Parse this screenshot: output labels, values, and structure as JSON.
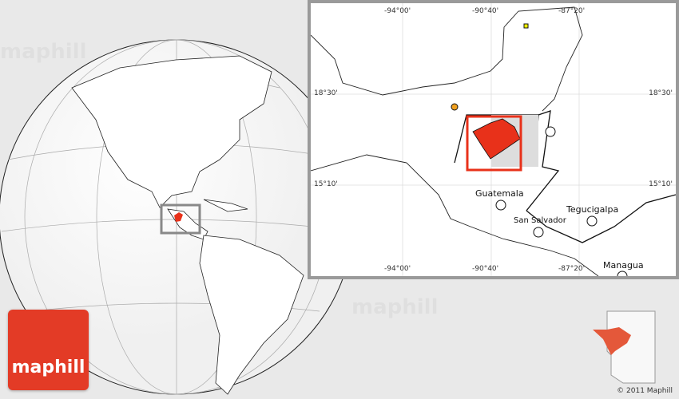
{
  "inset_map": {
    "longitude_labels": [
      "-94°00'",
      "-90°40'",
      "-87°20'"
    ],
    "latitude_labels": [
      "18°30'",
      "15°10'"
    ],
    "cities": [
      "Guatemala",
      "San Salvador",
      "Tegucigalpa",
      "Managua"
    ]
  },
  "watermark": "maphill",
  "logo": {
    "text": "maphill",
    "color": "#e33b26"
  },
  "highlight_color": "#e8311a",
  "copyright": "© 2011 Maphill"
}
